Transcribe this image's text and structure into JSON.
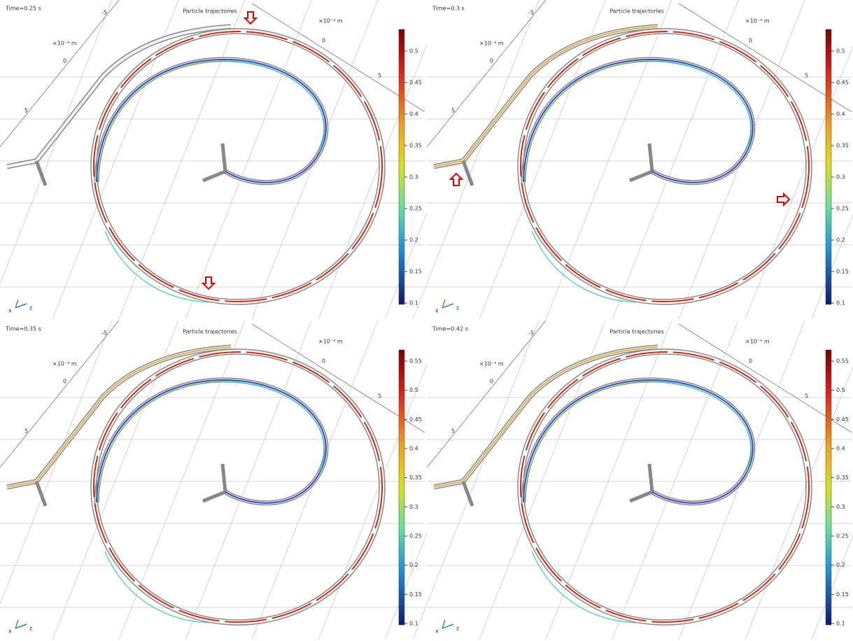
{
  "panels": [
    {
      "time": "Time=0.25 s",
      "title": "Particle trajectories",
      "axis_labels": [
        "-5",
        "×10⁻³ m",
        "0",
        "5",
        "×10⁻³ m",
        "0",
        "5"
      ],
      "triad": [
        "x",
        "z"
      ],
      "colorbar_ticks": [
        "0.5",
        "0.45",
        "0.4",
        "0.35",
        "0.3",
        "0.25",
        "0.2",
        "0.15",
        "0.1"
      ]
    },
    {
      "time": "Time=0.3 s",
      "title": "Particle trajectories",
      "axis_labels": [
        "-5",
        "×10⁻³ m",
        "0",
        "5",
        "×10⁻³ m",
        "0",
        "5"
      ],
      "triad": [
        "x",
        "z"
      ],
      "colorbar_ticks": [
        "0.5",
        "0.45",
        "0.4",
        "0.35",
        "0.3",
        "0.25",
        "0.2",
        "0.15",
        "0.1"
      ]
    },
    {
      "time": "Time=0.35 s",
      "title": "Particle trajectories",
      "axis_labels": [
        "-5",
        "×10⁻³ m",
        "0",
        "5",
        "×10⁻³ m",
        "0",
        "5"
      ],
      "triad": [
        "x",
        "z"
      ],
      "colorbar_ticks": [
        "0.55",
        "0.5",
        "0.45",
        "0.4",
        "0.35",
        "0.3",
        "0.25",
        "0.2",
        "0.15",
        "0.1"
      ]
    },
    {
      "time": "Time=0.42 s",
      "title": "Particle trajectories",
      "axis_labels": [
        "-5",
        "×10⁻³ m",
        "0",
        "5",
        "×10⁻³ m",
        "0",
        "5"
      ],
      "triad": [
        "x",
        "z"
      ],
      "colorbar_ticks": [
        "0.55",
        "0.5",
        "0.45",
        "0.4",
        "0.35",
        "0.3",
        "0.25",
        "0.2",
        "0.15",
        "0.1"
      ]
    }
  ]
}
